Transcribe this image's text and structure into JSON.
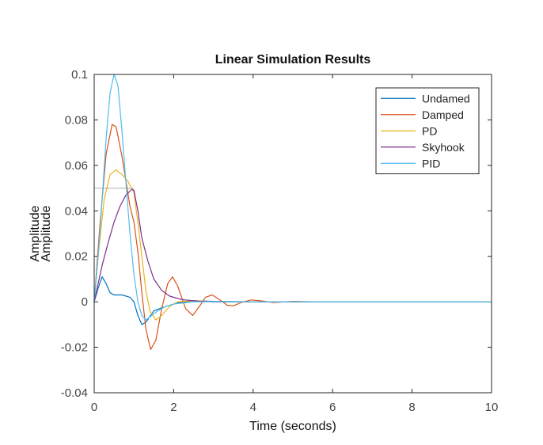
{
  "chart_data": {
    "type": "line",
    "title": "Linear Simulation Results",
    "xlabel": "Time (seconds)",
    "ylabel": "Amplitude",
    "xlim": [
      0,
      10
    ],
    "ylim": [
      -0.04,
      0.1
    ],
    "xticks": [
      "0",
      "2",
      "4",
      "6",
      "8",
      "10"
    ],
    "yticks": [
      "-0.04",
      "-0.02",
      "0",
      "0.02",
      "0.04",
      "0.06",
      "0.08",
      "0.1"
    ],
    "grid": false,
    "legend_position": "top-right",
    "input_signal": {
      "color": "#c0c0c0",
      "points": [
        [
          0,
          0.05
        ],
        [
          1.0,
          0.05
        ]
      ]
    },
    "series": [
      {
        "name": "Undamed",
        "color": "#0072BD",
        "points": [
          [
            0,
            0
          ],
          [
            0.1,
            0.006
          ],
          [
            0.2,
            0.011
          ],
          [
            0.3,
            0.008
          ],
          [
            0.4,
            0.004
          ],
          [
            0.5,
            0.003
          ],
          [
            0.7,
            0.003
          ],
          [
            0.9,
            0.002
          ],
          [
            1.0,
            0.0
          ],
          [
            1.1,
            -0.006
          ],
          [
            1.2,
            -0.01
          ],
          [
            1.3,
            -0.009
          ],
          [
            1.5,
            -0.004
          ],
          [
            1.8,
            -0.002
          ],
          [
            2.1,
            -0.0005
          ],
          [
            2.5,
            0.0005
          ],
          [
            3.0,
            0.0002
          ],
          [
            4.0,
            0.0
          ],
          [
            10,
            0.0
          ]
        ]
      },
      {
        "name": "Damped",
        "color": "#D95319",
        "points": [
          [
            0,
            0
          ],
          [
            0.15,
            0.035
          ],
          [
            0.3,
            0.065
          ],
          [
            0.45,
            0.078
          ],
          [
            0.55,
            0.077
          ],
          [
            0.7,
            0.064
          ],
          [
            0.9,
            0.042
          ],
          [
            1.0,
            0.035
          ],
          [
            1.1,
            0.022
          ],
          [
            1.2,
            0.004
          ],
          [
            1.3,
            -0.012
          ],
          [
            1.42,
            -0.021
          ],
          [
            1.55,
            -0.017
          ],
          [
            1.7,
            -0.003
          ],
          [
            1.85,
            0.008
          ],
          [
            1.97,
            0.011
          ],
          [
            2.1,
            0.007
          ],
          [
            2.3,
            -0.003
          ],
          [
            2.48,
            -0.006
          ],
          [
            2.65,
            -0.002
          ],
          [
            2.8,
            0.002
          ],
          [
            2.97,
            0.003
          ],
          [
            3.15,
            0.001
          ],
          [
            3.35,
            -0.0015
          ],
          [
            3.5,
            -0.0018
          ],
          [
            3.7,
            -0.0003
          ],
          [
            3.95,
            0.0008
          ],
          [
            4.2,
            0.0004
          ],
          [
            4.5,
            -0.0003
          ],
          [
            5.0,
            0.0002
          ],
          [
            5.5,
            0.0
          ],
          [
            10,
            0.0
          ]
        ]
      },
      {
        "name": "PD",
        "color": "#EDB120",
        "points": [
          [
            0,
            0
          ],
          [
            0.1,
            0.02
          ],
          [
            0.25,
            0.045
          ],
          [
            0.4,
            0.056
          ],
          [
            0.55,
            0.058
          ],
          [
            0.7,
            0.056
          ],
          [
            0.85,
            0.053
          ],
          [
            1.0,
            0.048
          ],
          [
            1.1,
            0.035
          ],
          [
            1.2,
            0.02
          ],
          [
            1.3,
            0.005
          ],
          [
            1.4,
            -0.004
          ],
          [
            1.55,
            -0.008
          ],
          [
            1.7,
            -0.006
          ],
          [
            1.9,
            -0.002
          ],
          [
            2.1,
            0.0
          ],
          [
            2.5,
            0.0005
          ],
          [
            3.0,
            0.0
          ],
          [
            10,
            0.0
          ]
        ]
      },
      {
        "name": "Skyhook",
        "color": "#7E2F8E",
        "points": [
          [
            0,
            0
          ],
          [
            0.1,
            0.008
          ],
          [
            0.2,
            0.016
          ],
          [
            0.35,
            0.026
          ],
          [
            0.5,
            0.035
          ],
          [
            0.65,
            0.042
          ],
          [
            0.8,
            0.047
          ],
          [
            0.95,
            0.0495
          ],
          [
            1.0,
            0.049
          ],
          [
            1.1,
            0.04
          ],
          [
            1.2,
            0.028
          ],
          [
            1.35,
            0.018
          ],
          [
            1.5,
            0.01
          ],
          [
            1.7,
            0.005
          ],
          [
            1.9,
            0.0025
          ],
          [
            2.2,
            0.001
          ],
          [
            2.6,
            0.0003
          ],
          [
            3.0,
            0.0
          ],
          [
            10,
            0.0
          ]
        ]
      },
      {
        "name": "PID",
        "color": "#4DBEEE",
        "points": [
          [
            0,
            0
          ],
          [
            0.1,
            0.02
          ],
          [
            0.2,
            0.045
          ],
          [
            0.3,
            0.072
          ],
          [
            0.4,
            0.092
          ],
          [
            0.5,
            0.1
          ],
          [
            0.6,
            0.095
          ],
          [
            0.7,
            0.075
          ],
          [
            0.8,
            0.052
          ],
          [
            0.9,
            0.03
          ],
          [
            1.0,
            0.012
          ],
          [
            1.1,
            0.0
          ],
          [
            1.2,
            -0.006
          ],
          [
            1.3,
            -0.008
          ],
          [
            1.45,
            -0.006
          ],
          [
            1.6,
            -0.004
          ],
          [
            1.8,
            -0.002
          ],
          [
            2.0,
            -0.001
          ],
          [
            2.5,
            0.0
          ],
          [
            10,
            0.0
          ]
        ]
      }
    ]
  }
}
